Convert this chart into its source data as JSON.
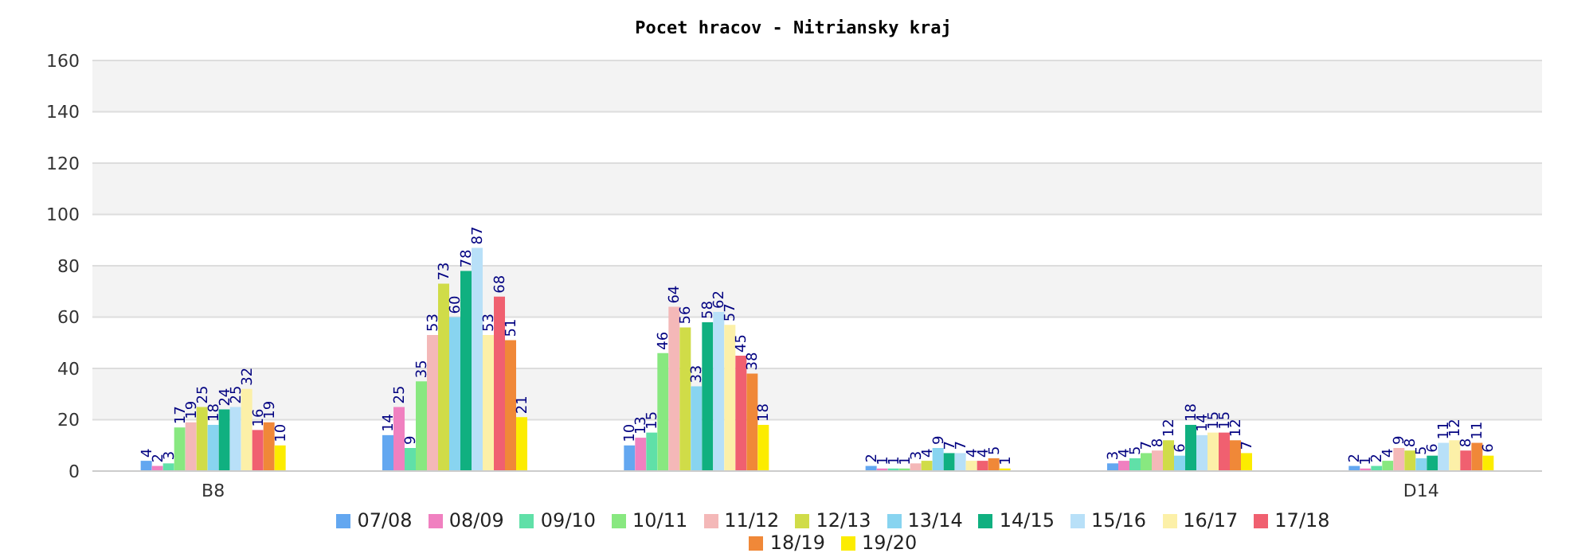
{
  "chart_data": {
    "type": "bar",
    "title": "Pocet hracov - Nitriansky kraj",
    "categories": [
      "B8",
      null,
      null,
      null,
      null,
      "D14"
    ],
    "series": [
      {
        "name": "07/08",
        "color": "#63a7f0",
        "values": [
          4,
          14,
          10,
          2,
          3,
          2
        ]
      },
      {
        "name": "08/09",
        "color": "#f080c0",
        "values": [
          2,
          25,
          13,
          1,
          4,
          1
        ]
      },
      {
        "name": "09/10",
        "color": "#60e0a8",
        "values": [
          3,
          9,
          15,
          1,
          5,
          2
        ]
      },
      {
        "name": "10/11",
        "color": "#88e880",
        "values": [
          17,
          35,
          46,
          1,
          7,
          4
        ]
      },
      {
        "name": "11/12",
        "color": "#f4b8b8",
        "values": [
          19,
          53,
          64,
          3,
          8,
          9
        ]
      },
      {
        "name": "12/13",
        "color": "#d0dc48",
        "values": [
          25,
          73,
          56,
          4,
          12,
          8
        ]
      },
      {
        "name": "13/14",
        "color": "#88d4f0",
        "values": [
          18,
          60,
          33,
          9,
          6,
          5
        ]
      },
      {
        "name": "14/15",
        "color": "#10b080",
        "values": [
          24,
          78,
          58,
          7,
          18,
          6
        ]
      },
      {
        "name": "15/16",
        "color": "#b8e0f8",
        "values": [
          25,
          87,
          62,
          7,
          14,
          11
        ]
      },
      {
        "name": "16/17",
        "color": "#fcf0a8",
        "values": [
          32,
          53,
          57,
          4,
          15,
          12
        ]
      },
      {
        "name": "17/18",
        "color": "#f06070",
        "values": [
          16,
          68,
          45,
          4,
          15,
          8
        ]
      },
      {
        "name": "18/19",
        "color": "#f08838",
        "values": [
          19,
          51,
          38,
          5,
          12,
          11
        ]
      },
      {
        "name": "19/20",
        "color": "#fcec00",
        "values": [
          10,
          21,
          18,
          1,
          7,
          6
        ]
      }
    ],
    "ylim": [
      0,
      160
    ],
    "yticks": [
      0,
      20,
      40,
      60,
      80,
      100,
      120,
      140,
      160
    ],
    "grid": "y",
    "legend": "bottom",
    "data_labels": true
  }
}
